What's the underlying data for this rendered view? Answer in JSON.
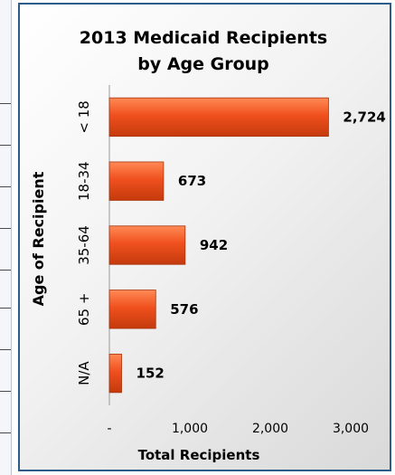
{
  "chart_data": {
    "type": "bar",
    "orientation": "horizontal",
    "title_lines": [
      "2013 Medicaid Recipients",
      "by Age Group"
    ],
    "ylabel": "Age of Recipient",
    "xlabel": "Total Recipients",
    "categories": [
      "< 18",
      "18-34",
      "35-64",
      "65 +",
      "N/A"
    ],
    "values": [
      2724,
      673,
      942,
      576,
      152
    ],
    "value_labels": [
      "2,724",
      "673",
      "942",
      "576",
      "152"
    ],
    "xlim": [
      0,
      3000
    ],
    "xticks": [
      0,
      1000,
      2000,
      3000
    ],
    "xtick_labels": [
      "-",
      "1,000",
      "2,000",
      "3,000"
    ],
    "grid": false,
    "legend": "none",
    "bar_color": "#f0501e"
  }
}
